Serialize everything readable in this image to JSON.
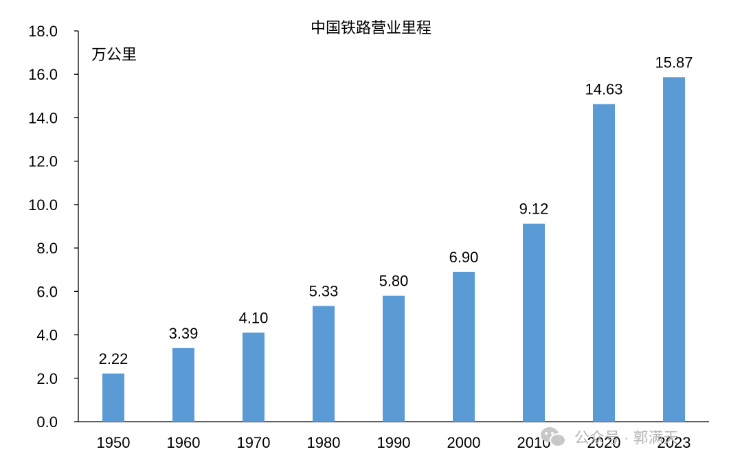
{
  "chart_data": {
    "type": "bar",
    "title": "中国铁路营业里程",
    "unit_label": "万公里",
    "categories": [
      "1950",
      "1960",
      "1970",
      "1980",
      "1990",
      "2000",
      "2010",
      "2020",
      "2023"
    ],
    "values": [
      2.22,
      3.39,
      4.1,
      5.33,
      5.8,
      6.9,
      9.12,
      14.63,
      15.87
    ],
    "value_labels": [
      "2.22",
      "3.39",
      "4.10",
      "5.33",
      "5.80",
      "6.90",
      "9.12",
      "14.63",
      "15.87"
    ],
    "ylim": [
      0,
      18
    ],
    "yticks": [
      "0.0",
      "2.0",
      "4.0",
      "6.0",
      "8.0",
      "10.0",
      "12.0",
      "14.0",
      "16.0",
      "18.0"
    ],
    "grid": false,
    "bar_color": "#5b9bd5"
  },
  "watermark": {
    "text": "公众号 · 郭满天",
    "icon": "wechat-icon"
  }
}
